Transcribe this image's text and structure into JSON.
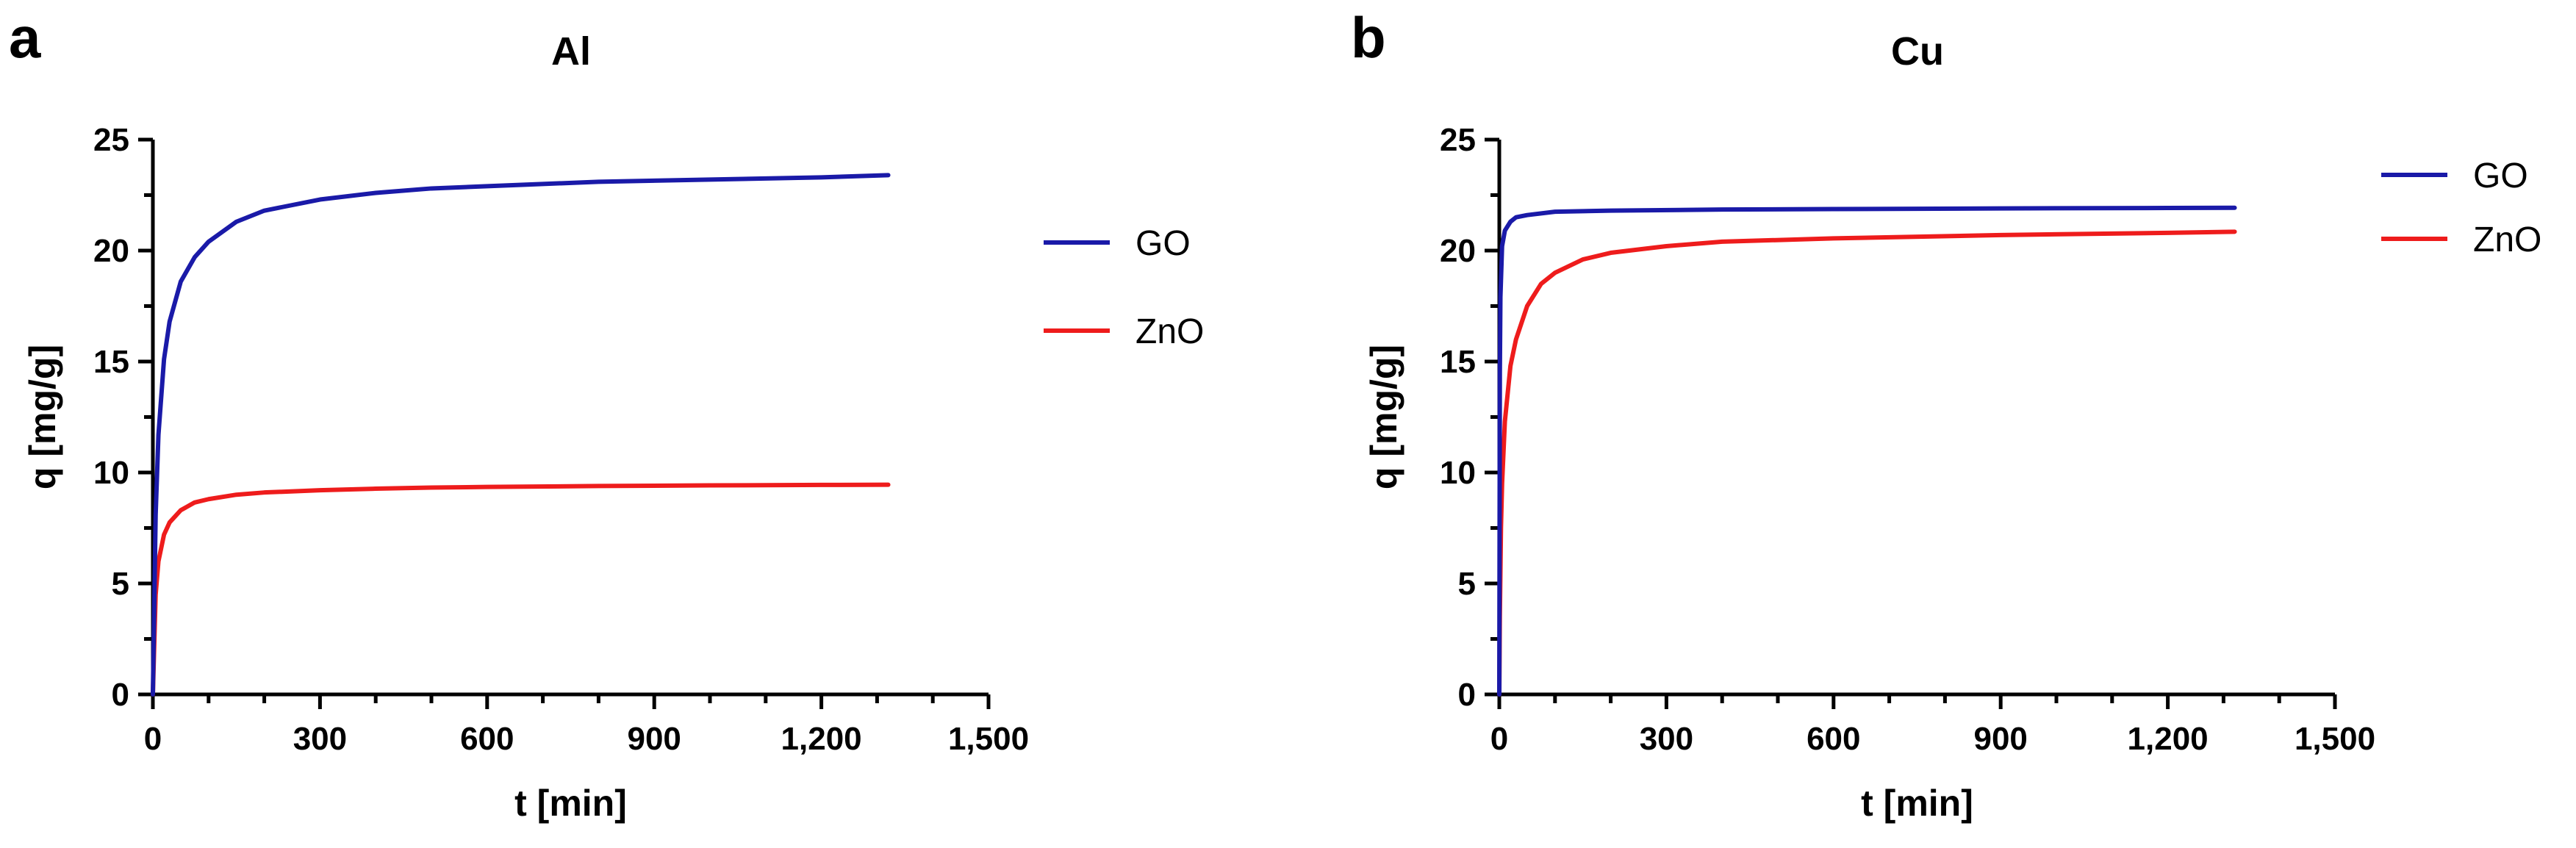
{
  "chart_data": [
    {
      "panel": "a",
      "type": "line",
      "title": "Al",
      "xlabel": "t [min]",
      "ylabel": "q [mg/g]",
      "xlim": [
        0,
        1500
      ],
      "ylim": [
        0,
        25
      ],
      "xticks": [
        "0",
        "300",
        "600",
        "900",
        "1,200",
        "1,500"
      ],
      "yticks": [
        "0",
        "5",
        "10",
        "15",
        "20",
        "25"
      ],
      "legend_position": "right",
      "series": [
        {
          "name": "GO",
          "color": "#1a1aa8",
          "x": [
            0,
            5,
            10,
            20,
            30,
            50,
            75,
            100,
            150,
            200,
            300,
            400,
            500,
            600,
            800,
            1000,
            1200,
            1320
          ],
          "y": [
            0,
            8.1,
            11.7,
            15.1,
            16.8,
            18.6,
            19.7,
            20.4,
            21.3,
            21.8,
            22.3,
            22.6,
            22.8,
            22.9,
            23.1,
            23.2,
            23.3,
            23.4
          ]
        },
        {
          "name": "ZnO",
          "color": "#ee1c1c",
          "x": [
            0,
            5,
            10,
            20,
            30,
            50,
            75,
            100,
            150,
            200,
            300,
            400,
            500,
            600,
            800,
            1000,
            1200,
            1320
          ],
          "y": [
            0,
            4.5,
            6.0,
            7.2,
            7.75,
            8.3,
            8.65,
            8.8,
            9.0,
            9.1,
            9.2,
            9.27,
            9.32,
            9.35,
            9.39,
            9.42,
            9.44,
            9.45
          ]
        }
      ]
    },
    {
      "panel": "b",
      "type": "line",
      "title": "Cu",
      "xlabel": "t [min]",
      "ylabel": "q [mg/g]",
      "xlim": [
        0,
        1500
      ],
      "ylim": [
        0,
        25
      ],
      "xticks": [
        "0",
        "300",
        "600",
        "900",
        "1,200",
        "1,500"
      ],
      "yticks": [
        "0",
        "5",
        "10",
        "15",
        "20",
        "25"
      ],
      "legend_position": "top-right",
      "series": [
        {
          "name": "GO",
          "color": "#1a1aa8",
          "x": [
            0,
            1,
            2,
            5,
            10,
            20,
            30,
            50,
            100,
            200,
            400,
            600,
            900,
            1200,
            1320
          ],
          "y": [
            0,
            14.5,
            17.9,
            20.2,
            20.9,
            21.3,
            21.5,
            21.6,
            21.75,
            21.8,
            21.85,
            21.87,
            21.9,
            21.92,
            21.93
          ]
        },
        {
          "name": "ZnO",
          "color": "#ee1c1c",
          "x": [
            0,
            1,
            3,
            5,
            10,
            20,
            30,
            50,
            75,
            100,
            150,
            200,
            300,
            400,
            600,
            900,
            1200,
            1320
          ],
          "y": [
            0,
            3.5,
            7.5,
            9.5,
            12.3,
            14.8,
            16.0,
            17.5,
            18.5,
            19.0,
            19.6,
            19.9,
            20.2,
            20.4,
            20.55,
            20.7,
            20.8,
            20.85
          ]
        }
      ]
    }
  ]
}
